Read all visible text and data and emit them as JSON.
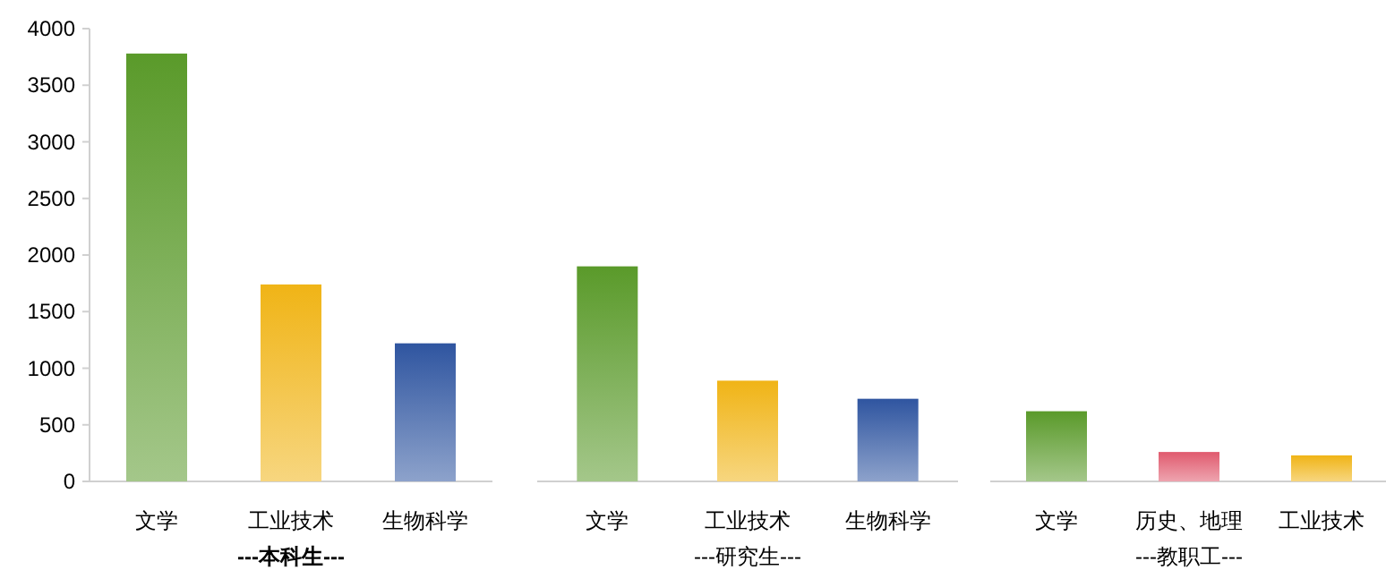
{
  "chart_data": [
    {
      "type": "bar",
      "xlabel": "---本科生---",
      "categories": [
        "文学",
        "工业技术",
        "生物科学"
      ],
      "values": [
        3780,
        1740,
        1220
      ],
      "colors": [
        "#5a9a2a",
        "#f0b416",
        "#2f55a0"
      ],
      "ylim": [
        0,
        4000
      ],
      "yticks": [
        0,
        500,
        1000,
        1500,
        2000,
        2500,
        3000,
        3500,
        4000
      ]
    },
    {
      "type": "bar",
      "xlabel": "---研究生---",
      "categories": [
        "文学",
        "工业技术",
        "生物科学"
      ],
      "values": [
        1900,
        890,
        730
      ],
      "colors": [
        "#5a9a2a",
        "#f0b416",
        "#2f55a0"
      ],
      "ylim": [
        0,
        4000
      ],
      "tick_labels": "x"
    },
    {
      "type": "bar",
      "xlabel": "---教职工---",
      "categories": [
        "文学",
        "历史、地理",
        "工业技术"
      ],
      "values": [
        620,
        260,
        230
      ],
      "colors": [
        "#5a9a2a",
        "#e05a6e",
        "#f0b416"
      ],
      "ylim": [
        0,
        4000
      ],
      "tick_labels": "x"
    }
  ]
}
